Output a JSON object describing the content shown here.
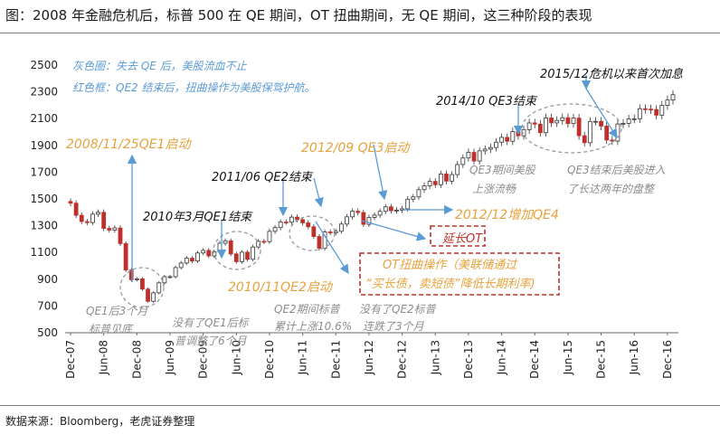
{
  "title": "图：2008 年金融危机后，标普 500 在 QE 期间，OT 扭曲期间，无 QE 期间，这三种阶段的表现",
  "source": "数据来源：Bloomberg，老虎证券整理",
  "colors": {
    "up": "#ffffff",
    "down": "#c0302b",
    "outline": "#333333",
    "orange": "#e6a23c",
    "blue": "#5b9bd5",
    "gray": "#8c8c8c",
    "red": "#c0302b"
  },
  "chart_data": {
    "type": "candlestick",
    "ylim": [
      500,
      2500
    ],
    "yticks": [
      "500",
      "700",
      "900",
      "1100",
      "1300",
      "1500",
      "1700",
      "1900",
      "2100",
      "2300",
      "2500"
    ],
    "xticks": [
      "Dec-07",
      "Jun-08",
      "Dec-08",
      "Jun-09",
      "Dec-09",
      "Jun-10",
      "Dec-10",
      "Jun-11",
      "Dec-11",
      "Jun-12",
      "Dec-12",
      "Jun-13",
      "Dec-13",
      "Jun-14",
      "Dec-14",
      "Jun-15",
      "Dec-15",
      "Jun-16",
      "Dec-16"
    ],
    "months": [
      "2007-12",
      "2008-01",
      "2008-02",
      "2008-03",
      "2008-04",
      "2008-05",
      "2008-06",
      "2008-07",
      "2008-08",
      "2008-09",
      "2008-10",
      "2008-11",
      "2008-12",
      "2009-01",
      "2009-02",
      "2009-03",
      "2009-04",
      "2009-05",
      "2009-06",
      "2009-07",
      "2009-08",
      "2009-09",
      "2009-10",
      "2009-11",
      "2009-12",
      "2010-01",
      "2010-02",
      "2010-03",
      "2010-04",
      "2010-05",
      "2010-06",
      "2010-07",
      "2010-08",
      "2010-09",
      "2010-10",
      "2010-11",
      "2010-12",
      "2011-01",
      "2011-02",
      "2011-03",
      "2011-04",
      "2011-05",
      "2011-06",
      "2011-07",
      "2011-08",
      "2011-09",
      "2011-10",
      "2011-11",
      "2011-12",
      "2012-01",
      "2012-02",
      "2012-03",
      "2012-04",
      "2012-05",
      "2012-06",
      "2012-07",
      "2012-08",
      "2012-09",
      "2012-10",
      "2012-11",
      "2012-12",
      "2013-01",
      "2013-02",
      "2013-03",
      "2013-04",
      "2013-05",
      "2013-06",
      "2013-07",
      "2013-08",
      "2013-09",
      "2013-10",
      "2013-11",
      "2013-12",
      "2014-01",
      "2014-02",
      "2014-03",
      "2014-04",
      "2014-05",
      "2014-06",
      "2014-07",
      "2014-08",
      "2014-09",
      "2014-10",
      "2014-11",
      "2014-12",
      "2015-01",
      "2015-02",
      "2015-03",
      "2015-04",
      "2015-05",
      "2015-06",
      "2015-07",
      "2015-08",
      "2015-09",
      "2015-10",
      "2015-11",
      "2015-12",
      "2016-01",
      "2016-02",
      "2016-03",
      "2016-04",
      "2016-05",
      "2016-06",
      "2016-07",
      "2016-08",
      "2016-09",
      "2016-10",
      "2016-11",
      "2016-12",
      "2017-01"
    ],
    "close": [
      1468,
      1378,
      1331,
      1323,
      1386,
      1400,
      1280,
      1267,
      1283,
      1166,
      969,
      896,
      903,
      826,
      735,
      798,
      873,
      919,
      919,
      987,
      1021,
      1057,
      1036,
      1096,
      1115,
      1074,
      1104,
      1169,
      1187,
      1089,
      1031,
      1102,
      1049,
      1141,
      1183,
      1181,
      1258,
      1286,
      1327,
      1326,
      1364,
      1345,
      1321,
      1292,
      1219,
      1131,
      1253,
      1247,
      1258,
      1312,
      1366,
      1408,
      1398,
      1310,
      1362,
      1379,
      1407,
      1441,
      1412,
      1416,
      1426,
      1498,
      1515,
      1569,
      1598,
      1631,
      1606,
      1686,
      1633,
      1682,
      1757,
      1806,
      1848,
      1783,
      1859,
      1872,
      1884,
      1924,
      1960,
      1931,
      2003,
      1972,
      2018,
      2068,
      2059,
      1995,
      2105,
      2068,
      2086,
      2107,
      2063,
      2104,
      1972,
      1920,
      2079,
      2080,
      2044,
      1940,
      1932,
      2060,
      2065,
      2097,
      2099,
      2174,
      2171,
      2168,
      2126,
      2199,
      2239,
      2279
    ],
    "annotations": {
      "gray_circles": "灰色圈：失去 QE 后，美股流血不止",
      "red_boxes": "红色框：QE2 结束后，扭曲操作为美股保驾护航。",
      "qe1_start": "2008/11/25QE1启动",
      "qe1_end": "2010年3月QE1结束",
      "qe2_end": "2011/06 QE2结束",
      "qe3_start": "2012/09 QE3启动",
      "qe3_end": "2014/10 QE3结束",
      "first_hike": "2015/12危机以来首次加息",
      "qe2_start": "2010/11QE2启动",
      "qe4": "2012/12增加QE4",
      "ot_extend": "延长OT",
      "ot_box_line1": "OT扭曲操作（美联储通过",
      "ot_box_line2": "“买长债，卖短债”降低长期利率)",
      "qe3_rise_1": "QE3期间美股",
      "qe3_rise_2": "上涨流畅",
      "after_qe3_1": "QE3结束后美股进入",
      "after_qe3_2": "了长达两年的盘整",
      "after_qe1_1": "QE1后3个月",
      "after_qe1_2": "标普见底",
      "no_qe1_1": "没有了QE1后标",
      "no_qe1_2": "普调整了6个月",
      "qe2_rise_1": "QE2期间标普",
      "qe2_rise_2": "累计上涨10.6%",
      "no_qe2_1": "没有了QE2标普",
      "no_qe2_2": "连跌了3个月"
    }
  }
}
